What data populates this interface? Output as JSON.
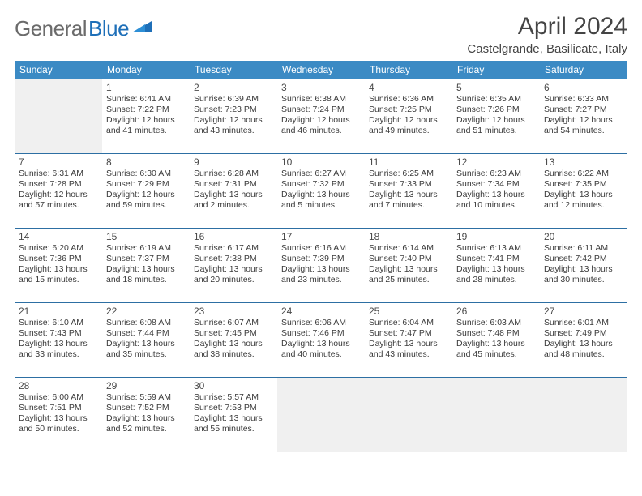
{
  "logo": {
    "part1": "General",
    "part2": "Blue"
  },
  "title": "April 2024",
  "location": "Castelgrande, Basilicate, Italy",
  "colors": {
    "header_bg": "#3b8ac4",
    "header_text": "#ffffff",
    "row_border": "#2d6fa3",
    "empty_bg": "#f0f0f0",
    "text": "#3a3a3a",
    "title_text": "#444444",
    "logo_gray": "#6b6b6b",
    "logo_blue": "#1e6fb8"
  },
  "day_headers": [
    "Sunday",
    "Monday",
    "Tuesday",
    "Wednesday",
    "Thursday",
    "Friday",
    "Saturday"
  ],
  "weeks": [
    [
      null,
      {
        "n": "1",
        "sr": "6:41 AM",
        "ss": "7:22 PM",
        "dl": "12 hours and 41 minutes."
      },
      {
        "n": "2",
        "sr": "6:39 AM",
        "ss": "7:23 PM",
        "dl": "12 hours and 43 minutes."
      },
      {
        "n": "3",
        "sr": "6:38 AM",
        "ss": "7:24 PM",
        "dl": "12 hours and 46 minutes."
      },
      {
        "n": "4",
        "sr": "6:36 AM",
        "ss": "7:25 PM",
        "dl": "12 hours and 49 minutes."
      },
      {
        "n": "5",
        "sr": "6:35 AM",
        "ss": "7:26 PM",
        "dl": "12 hours and 51 minutes."
      },
      {
        "n": "6",
        "sr": "6:33 AM",
        "ss": "7:27 PM",
        "dl": "12 hours and 54 minutes."
      }
    ],
    [
      {
        "n": "7",
        "sr": "6:31 AM",
        "ss": "7:28 PM",
        "dl": "12 hours and 57 minutes."
      },
      {
        "n": "8",
        "sr": "6:30 AM",
        "ss": "7:29 PM",
        "dl": "12 hours and 59 minutes."
      },
      {
        "n": "9",
        "sr": "6:28 AM",
        "ss": "7:31 PM",
        "dl": "13 hours and 2 minutes."
      },
      {
        "n": "10",
        "sr": "6:27 AM",
        "ss": "7:32 PM",
        "dl": "13 hours and 5 minutes."
      },
      {
        "n": "11",
        "sr": "6:25 AM",
        "ss": "7:33 PM",
        "dl": "13 hours and 7 minutes."
      },
      {
        "n": "12",
        "sr": "6:23 AM",
        "ss": "7:34 PM",
        "dl": "13 hours and 10 minutes."
      },
      {
        "n": "13",
        "sr": "6:22 AM",
        "ss": "7:35 PM",
        "dl": "13 hours and 12 minutes."
      }
    ],
    [
      {
        "n": "14",
        "sr": "6:20 AM",
        "ss": "7:36 PM",
        "dl": "13 hours and 15 minutes."
      },
      {
        "n": "15",
        "sr": "6:19 AM",
        "ss": "7:37 PM",
        "dl": "13 hours and 18 minutes."
      },
      {
        "n": "16",
        "sr": "6:17 AM",
        "ss": "7:38 PM",
        "dl": "13 hours and 20 minutes."
      },
      {
        "n": "17",
        "sr": "6:16 AM",
        "ss": "7:39 PM",
        "dl": "13 hours and 23 minutes."
      },
      {
        "n": "18",
        "sr": "6:14 AM",
        "ss": "7:40 PM",
        "dl": "13 hours and 25 minutes."
      },
      {
        "n": "19",
        "sr": "6:13 AM",
        "ss": "7:41 PM",
        "dl": "13 hours and 28 minutes."
      },
      {
        "n": "20",
        "sr": "6:11 AM",
        "ss": "7:42 PM",
        "dl": "13 hours and 30 minutes."
      }
    ],
    [
      {
        "n": "21",
        "sr": "6:10 AM",
        "ss": "7:43 PM",
        "dl": "13 hours and 33 minutes."
      },
      {
        "n": "22",
        "sr": "6:08 AM",
        "ss": "7:44 PM",
        "dl": "13 hours and 35 minutes."
      },
      {
        "n": "23",
        "sr": "6:07 AM",
        "ss": "7:45 PM",
        "dl": "13 hours and 38 minutes."
      },
      {
        "n": "24",
        "sr": "6:06 AM",
        "ss": "7:46 PM",
        "dl": "13 hours and 40 minutes."
      },
      {
        "n": "25",
        "sr": "6:04 AM",
        "ss": "7:47 PM",
        "dl": "13 hours and 43 minutes."
      },
      {
        "n": "26",
        "sr": "6:03 AM",
        "ss": "7:48 PM",
        "dl": "13 hours and 45 minutes."
      },
      {
        "n": "27",
        "sr": "6:01 AM",
        "ss": "7:49 PM",
        "dl": "13 hours and 48 minutes."
      }
    ],
    [
      {
        "n": "28",
        "sr": "6:00 AM",
        "ss": "7:51 PM",
        "dl": "13 hours and 50 minutes."
      },
      {
        "n": "29",
        "sr": "5:59 AM",
        "ss": "7:52 PM",
        "dl": "13 hours and 52 minutes."
      },
      {
        "n": "30",
        "sr": "5:57 AM",
        "ss": "7:53 PM",
        "dl": "13 hours and 55 minutes."
      },
      null,
      null,
      null,
      null
    ]
  ],
  "labels": {
    "sunrise": "Sunrise:",
    "sunset": "Sunset:",
    "daylight": "Daylight:"
  },
  "typography": {
    "title_fontsize": 30,
    "location_fontsize": 15,
    "header_fontsize": 12,
    "daynum_fontsize": 12,
    "info_fontsize": 10.5
  }
}
